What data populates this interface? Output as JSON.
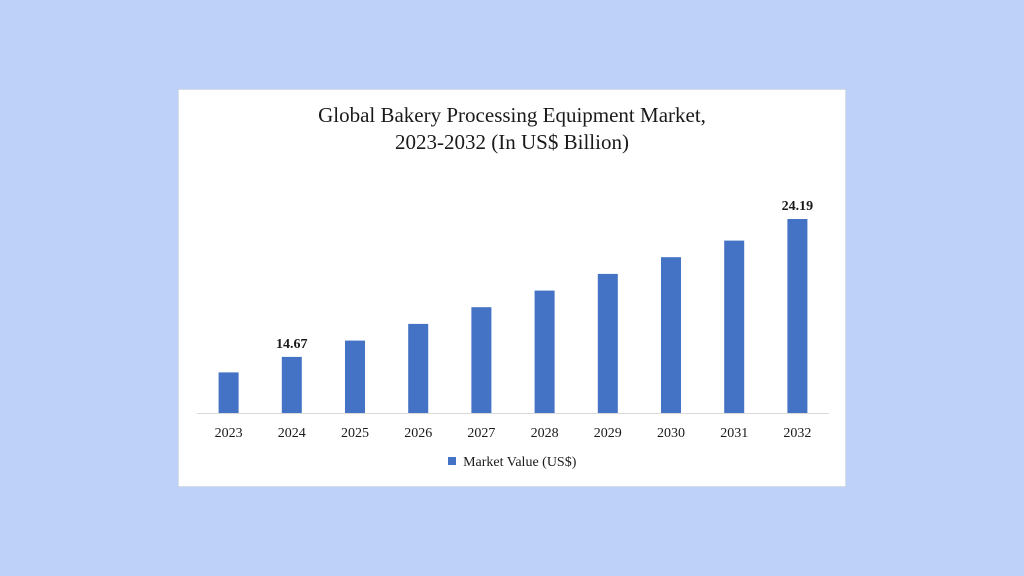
{
  "chart_data": {
    "type": "bar",
    "title_lines": [
      "Global Bakery Processing Equipment Market,",
      "2023-2032 (In US$ Billion)"
    ],
    "categories": [
      "2023",
      "2024",
      "2025",
      "2026",
      "2027",
      "2028",
      "2029",
      "2030",
      "2031",
      "2032"
    ],
    "series": [
      {
        "name": "Market Value (US$)",
        "color": "#4472c4",
        "values": [
          13.6,
          14.67,
          15.8,
          16.95,
          18.1,
          19.25,
          20.4,
          21.55,
          22.7,
          24.19
        ]
      }
    ],
    "data_labels": [
      {
        "index": 1,
        "text": "14.67"
      },
      {
        "index": 9,
        "text": "24.19"
      }
    ],
    "xlabel": "",
    "ylabel": "",
    "ylim": [
      10.8,
      24.19
    ],
    "grid": false,
    "legend": "bottom"
  }
}
